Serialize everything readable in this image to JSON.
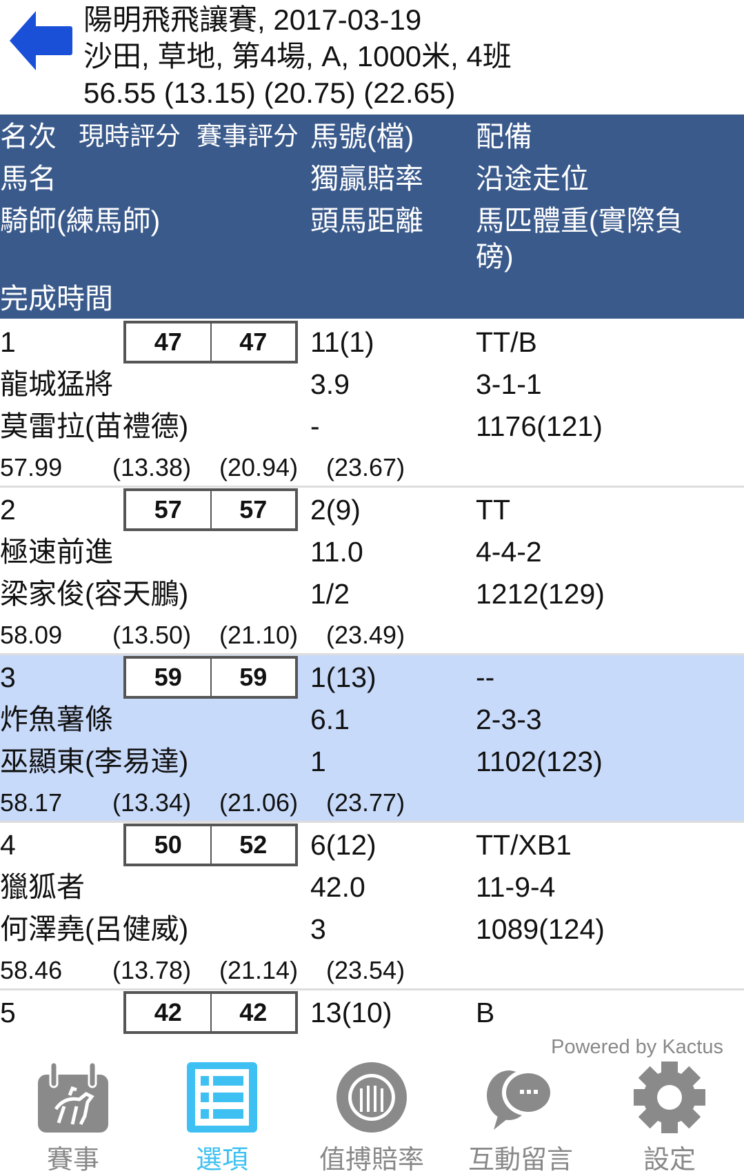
{
  "header": {
    "line1": "陽明飛飛讓賽, 2017-03-19",
    "line2": "沙田, 草地, 第4場, A, 1000米, 4班",
    "line3": "56.55 (13.15) (20.75) (22.65)"
  },
  "columns": {
    "rank": "名次",
    "current_rating": "現時評分",
    "race_rating": "賽事評分",
    "horse_no": "馬號(檔)",
    "gear": "配備",
    "horse_name": "馬名",
    "win_odds": "獨贏賠率",
    "running_pos": "沿途走位",
    "jockey": "騎師(練馬師)",
    "margin": "頭馬距離",
    "weight_l1": "馬匹體重(實際負",
    "weight_l2": "磅)",
    "finish_time": "完成時間"
  },
  "rows": [
    {
      "rank": "1",
      "cur": "47",
      "race": "47",
      "no": "11(1)",
      "gear": "TT/B",
      "name": "龍城猛將",
      "odds": "3.9",
      "pos": "3-1-1",
      "jockey": "莫雷拉(苗禮德)",
      "margin": "-",
      "weight": "1176(121)",
      "time": "57.99",
      "s1": "(13.38)",
      "s2": "(20.94)",
      "s3": "(23.67)"
    },
    {
      "rank": "2",
      "cur": "57",
      "race": "57",
      "no": "2(9)",
      "gear": "TT",
      "name": "極速前進",
      "odds": "11.0",
      "pos": "4-4-2",
      "jockey": "梁家俊(容天鵬)",
      "margin": "1/2",
      "weight": "1212(129)",
      "time": "58.09",
      "s1": "(13.50)",
      "s2": "(21.10)",
      "s3": "(23.49)"
    },
    {
      "rank": "3",
      "cur": "59",
      "race": "59",
      "no": "1(13)",
      "gear": "--",
      "name": "炸魚薯條",
      "odds": "6.1",
      "pos": "2-3-3",
      "jockey": "巫顯東(李易達)",
      "margin": "1",
      "weight": "1102(123)",
      "time": "58.17",
      "s1": "(13.34)",
      "s2": "(21.06)",
      "s3": "(23.77)"
    },
    {
      "rank": "4",
      "cur": "50",
      "race": "52",
      "no": "6(12)",
      "gear": "TT/XB1",
      "name": "獵狐者",
      "odds": "42.0",
      "pos": "11-9-4",
      "jockey": "何澤堯(呂健威)",
      "margin": "3",
      "weight": "1089(124)",
      "time": "58.46",
      "s1": "(13.78)",
      "s2": "(21.14)",
      "s3": "(23.54)"
    },
    {
      "rank": "5",
      "cur": "42",
      "race": "42",
      "no": "13(10)",
      "gear": "B"
    }
  ],
  "highlight_color": "#c8dafa",
  "header_color": "#3a5a8c",
  "footer": {
    "powered": "Powered by Kactus",
    "nav": [
      {
        "label": "賽事",
        "icon": "race-calendar-icon"
      },
      {
        "label": "選項",
        "icon": "list-icon",
        "active": true
      },
      {
        "label": "值搏賠率",
        "icon": "chip-icon"
      },
      {
        "label": "互動留言",
        "icon": "chat-icon"
      },
      {
        "label": "設定",
        "icon": "gear-icon"
      }
    ]
  }
}
